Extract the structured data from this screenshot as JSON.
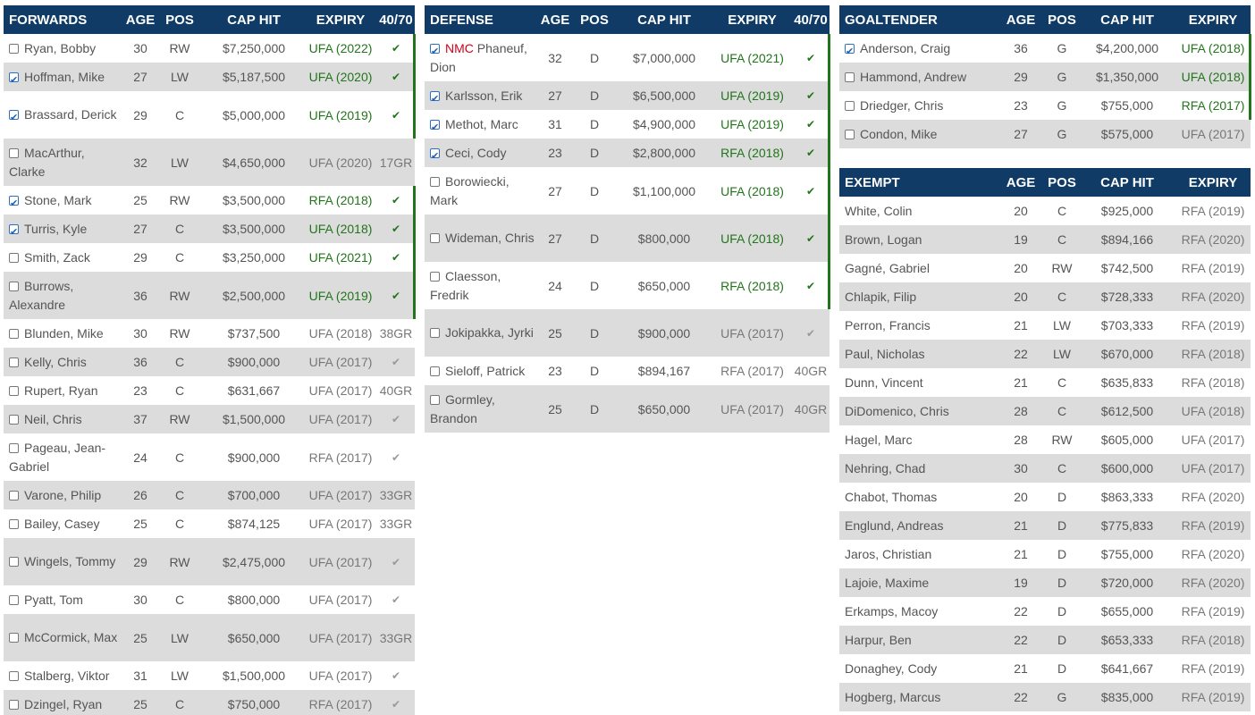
{
  "forwards": {
    "headers": [
      "FORWARDS",
      "AGE",
      "POS",
      "CAP HIT",
      "EXPIRY",
      "40/70"
    ],
    "rows": [
      {
        "name": "Ryan, Bobby",
        "age": "30",
        "pos": "RW",
        "cap": "$7,250,000",
        "expiry": "UFA (2022)",
        "extra": "✔",
        "checked": false,
        "active": true,
        "tall": false
      },
      {
        "name": "Hoffman, Mike",
        "age": "27",
        "pos": "LW",
        "cap": "$5,187,500",
        "expiry": "UFA (2020)",
        "extra": "✔",
        "checked": true,
        "active": true,
        "tall": false
      },
      {
        "name": "Brassard, Derick",
        "age": "29",
        "pos": "C",
        "cap": "$5,000,000",
        "expiry": "UFA (2019)",
        "extra": "✔",
        "checked": true,
        "active": true,
        "tall": true
      },
      {
        "name": "MacArthur, Clarke",
        "age": "32",
        "pos": "LW",
        "cap": "$4,650,000",
        "expiry": "UFA (2020)",
        "extra": "17GR",
        "checked": false,
        "active": false,
        "tall": true
      },
      {
        "name": "Stone, Mark",
        "age": "25",
        "pos": "RW",
        "cap": "$3,500,000",
        "expiry": "RFA (2018)",
        "extra": "✔",
        "checked": true,
        "active": true,
        "tall": false
      },
      {
        "name": "Turris, Kyle",
        "age": "27",
        "pos": "C",
        "cap": "$3,500,000",
        "expiry": "UFA (2018)",
        "extra": "✔",
        "checked": true,
        "active": true,
        "tall": false
      },
      {
        "name": "Smith, Zack",
        "age": "29",
        "pos": "C",
        "cap": "$3,250,000",
        "expiry": "UFA (2021)",
        "extra": "✔",
        "checked": false,
        "active": true,
        "tall": false
      },
      {
        "name": "Burrows, Alexandre",
        "age": "36",
        "pos": "RW",
        "cap": "$2,500,000",
        "expiry": "UFA (2019)",
        "extra": "✔",
        "checked": false,
        "active": true,
        "tall": true
      },
      {
        "name": "Blunden, Mike",
        "age": "30",
        "pos": "RW",
        "cap": "$737,500",
        "expiry": "UFA (2018)",
        "extra": "38GR",
        "checked": false,
        "active": false,
        "tall": false
      },
      {
        "name": "Kelly, Chris",
        "age": "36",
        "pos": "C",
        "cap": "$900,000",
        "expiry": "UFA (2017)",
        "extra": "✔",
        "checked": false,
        "active": false,
        "tall": false
      },
      {
        "name": "Rupert, Ryan",
        "age": "23",
        "pos": "C",
        "cap": "$631,667",
        "expiry": "UFA (2017)",
        "extra": "40GR",
        "checked": false,
        "active": false,
        "tall": false
      },
      {
        "name": "Neil, Chris",
        "age": "37",
        "pos": "RW",
        "cap": "$1,500,000",
        "expiry": "UFA (2017)",
        "extra": "✔",
        "checked": false,
        "active": false,
        "tall": false
      },
      {
        "name": "Pageau, Jean-Gabriel",
        "age": "24",
        "pos": "C",
        "cap": "$900,000",
        "expiry": "RFA (2017)",
        "extra": "✔",
        "checked": false,
        "active": false,
        "tall": true
      },
      {
        "name": "Varone, Philip",
        "age": "26",
        "pos": "C",
        "cap": "$700,000",
        "expiry": "UFA (2017)",
        "extra": "33GR",
        "checked": false,
        "active": false,
        "tall": false
      },
      {
        "name": "Bailey, Casey",
        "age": "25",
        "pos": "C",
        "cap": "$874,125",
        "expiry": "UFA (2017)",
        "extra": "33GR",
        "checked": false,
        "active": false,
        "tall": false
      },
      {
        "name": "Wingels, Tommy",
        "age": "29",
        "pos": "RW",
        "cap": "$2,475,000",
        "expiry": "UFA (2017)",
        "extra": "✔",
        "checked": false,
        "active": false,
        "tall": true
      },
      {
        "name": "Pyatt, Tom",
        "age": "30",
        "pos": "C",
        "cap": "$800,000",
        "expiry": "UFA (2017)",
        "extra": "✔",
        "checked": false,
        "active": false,
        "tall": false
      },
      {
        "name": "McCormick, Max",
        "age": "25",
        "pos": "LW",
        "cap": "$650,000",
        "expiry": "UFA (2017)",
        "extra": "33GR",
        "checked": false,
        "active": false,
        "tall": true
      },
      {
        "name": "Stalberg, Viktor",
        "age": "31",
        "pos": "LW",
        "cap": "$1,500,000",
        "expiry": "UFA (2017)",
        "extra": "✔",
        "checked": false,
        "active": false,
        "tall": false
      },
      {
        "name": "Dzingel, Ryan",
        "age": "25",
        "pos": "C",
        "cap": "$750,000",
        "expiry": "RFA (2017)",
        "extra": "✔",
        "checked": false,
        "active": false,
        "tall": false
      }
    ]
  },
  "defense": {
    "headers": [
      "DEFENSE",
      "AGE",
      "POS",
      "CAP HIT",
      "EXPIRY",
      "40/70"
    ],
    "rows": [
      {
        "tag": "NMC",
        "name": "Phaneuf, Dion",
        "age": "32",
        "pos": "D",
        "cap": "$7,000,000",
        "expiry": "UFA (2021)",
        "extra": "✔",
        "checked": true,
        "active": true,
        "tall": true
      },
      {
        "name": "Karlsson, Erik",
        "age": "27",
        "pos": "D",
        "cap": "$6,500,000",
        "expiry": "UFA (2019)",
        "extra": "✔",
        "checked": true,
        "active": true,
        "tall": false
      },
      {
        "name": "Methot, Marc",
        "age": "31",
        "pos": "D",
        "cap": "$4,900,000",
        "expiry": "UFA (2019)",
        "extra": "✔",
        "checked": true,
        "active": true,
        "tall": false
      },
      {
        "name": "Ceci, Cody",
        "age": "23",
        "pos": "D",
        "cap": "$2,800,000",
        "expiry": "RFA (2018)",
        "extra": "✔",
        "checked": true,
        "active": true,
        "tall": false
      },
      {
        "name": "Borowiecki, Mark",
        "age": "27",
        "pos": "D",
        "cap": "$1,100,000",
        "expiry": "UFA (2018)",
        "extra": "✔",
        "checked": false,
        "active": true,
        "tall": true
      },
      {
        "name": "Wideman, Chris",
        "age": "27",
        "pos": "D",
        "cap": "$800,000",
        "expiry": "UFA (2018)",
        "extra": "✔",
        "checked": false,
        "active": true,
        "tall": true
      },
      {
        "name": "Claesson, Fredrik",
        "age": "24",
        "pos": "D",
        "cap": "$650,000",
        "expiry": "RFA (2018)",
        "extra": "✔",
        "checked": false,
        "active": true,
        "tall": true
      },
      {
        "name": "Jokipakka, Jyrki",
        "age": "25",
        "pos": "D",
        "cap": "$900,000",
        "expiry": "UFA (2017)",
        "extra": "✔",
        "checked": false,
        "active": false,
        "tall": true
      },
      {
        "name": "Sieloff, Patrick",
        "age": "23",
        "pos": "D",
        "cap": "$894,167",
        "expiry": "RFA (2017)",
        "extra": "40GR",
        "checked": false,
        "active": false,
        "tall": false
      },
      {
        "name": "Gormley, Brandon",
        "age": "25",
        "pos": "D",
        "cap": "$650,000",
        "expiry": "UFA (2017)",
        "extra": "40GR",
        "checked": false,
        "active": false,
        "tall": true
      }
    ]
  },
  "goaltender": {
    "headers": [
      "GOALTENDER",
      "AGE",
      "POS",
      "CAP HIT",
      "EXPIRY"
    ],
    "rows": [
      {
        "name": "Anderson, Craig",
        "age": "36",
        "pos": "G",
        "cap": "$4,200,000",
        "expiry": "UFA (2018)",
        "checked": true,
        "active": true
      },
      {
        "name": "Hammond, Andrew",
        "age": "29",
        "pos": "G",
        "cap": "$1,350,000",
        "expiry": "UFA (2018)",
        "checked": false,
        "active": true
      },
      {
        "name": "Driedger, Chris",
        "age": "23",
        "pos": "G",
        "cap": "$755,000",
        "expiry": "RFA (2017)",
        "checked": false,
        "active": true
      },
      {
        "name": "Condon, Mike",
        "age": "27",
        "pos": "G",
        "cap": "$575,000",
        "expiry": "UFA (2017)",
        "checked": false,
        "active": false
      }
    ]
  },
  "exempt": {
    "headers": [
      "EXEMPT",
      "AGE",
      "POS",
      "CAP HIT",
      "EXPIRY"
    ],
    "rows": [
      {
        "name": "White, Colin",
        "age": "20",
        "pos": "C",
        "cap": "$925,000",
        "expiry": "RFA (2019)"
      },
      {
        "name": "Brown, Logan",
        "age": "19",
        "pos": "C",
        "cap": "$894,166",
        "expiry": "RFA (2020)"
      },
      {
        "name": "Gagné, Gabriel",
        "age": "20",
        "pos": "RW",
        "cap": "$742,500",
        "expiry": "RFA (2019)"
      },
      {
        "name": "Chlapik, Filip",
        "age": "20",
        "pos": "C",
        "cap": "$728,333",
        "expiry": "RFA (2020)"
      },
      {
        "name": "Perron, Francis",
        "age": "21",
        "pos": "LW",
        "cap": "$703,333",
        "expiry": "RFA (2019)"
      },
      {
        "name": "Paul, Nicholas",
        "age": "22",
        "pos": "LW",
        "cap": "$670,000",
        "expiry": "RFA (2018)"
      },
      {
        "name": "Dunn, Vincent",
        "age": "21",
        "pos": "C",
        "cap": "$635,833",
        "expiry": "RFA (2018)"
      },
      {
        "name": "DiDomenico, Chris",
        "age": "28",
        "pos": "C",
        "cap": "$612,500",
        "expiry": "UFA (2018)"
      },
      {
        "name": "Hagel, Marc",
        "age": "28",
        "pos": "RW",
        "cap": "$605,000",
        "expiry": "UFA (2017)"
      },
      {
        "name": "Nehring, Chad",
        "age": "30",
        "pos": "C",
        "cap": "$600,000",
        "expiry": "UFA (2017)"
      },
      {
        "name": "Chabot, Thomas",
        "age": "20",
        "pos": "D",
        "cap": "$863,333",
        "expiry": "RFA (2020)"
      },
      {
        "name": "Englund, Andreas",
        "age": "21",
        "pos": "D",
        "cap": "$775,833",
        "expiry": "RFA (2019)"
      },
      {
        "name": "Jaros, Christian",
        "age": "21",
        "pos": "D",
        "cap": "$755,000",
        "expiry": "RFA (2020)"
      },
      {
        "name": "Lajoie, Maxime",
        "age": "19",
        "pos": "D",
        "cap": "$720,000",
        "expiry": "RFA (2020)"
      },
      {
        "name": "Erkamps, Macoy",
        "age": "22",
        "pos": "D",
        "cap": "$655,000",
        "expiry": "RFA (2019)"
      },
      {
        "name": "Harpur, Ben",
        "age": "22",
        "pos": "D",
        "cap": "$653,333",
        "expiry": "RFA (2018)"
      },
      {
        "name": "Donaghey, Cody",
        "age": "21",
        "pos": "D",
        "cap": "$641,667",
        "expiry": "RFA (2019)"
      },
      {
        "name": "Hogberg, Marcus",
        "age": "22",
        "pos": "G",
        "cap": "$835,000",
        "expiry": "RFA (2019)"
      }
    ]
  },
  "colors": {
    "header_bg": "#0f3b66",
    "stripe": "#dcdcdc",
    "active_green": "#22751b",
    "nmc_red": "#d0021b"
  }
}
